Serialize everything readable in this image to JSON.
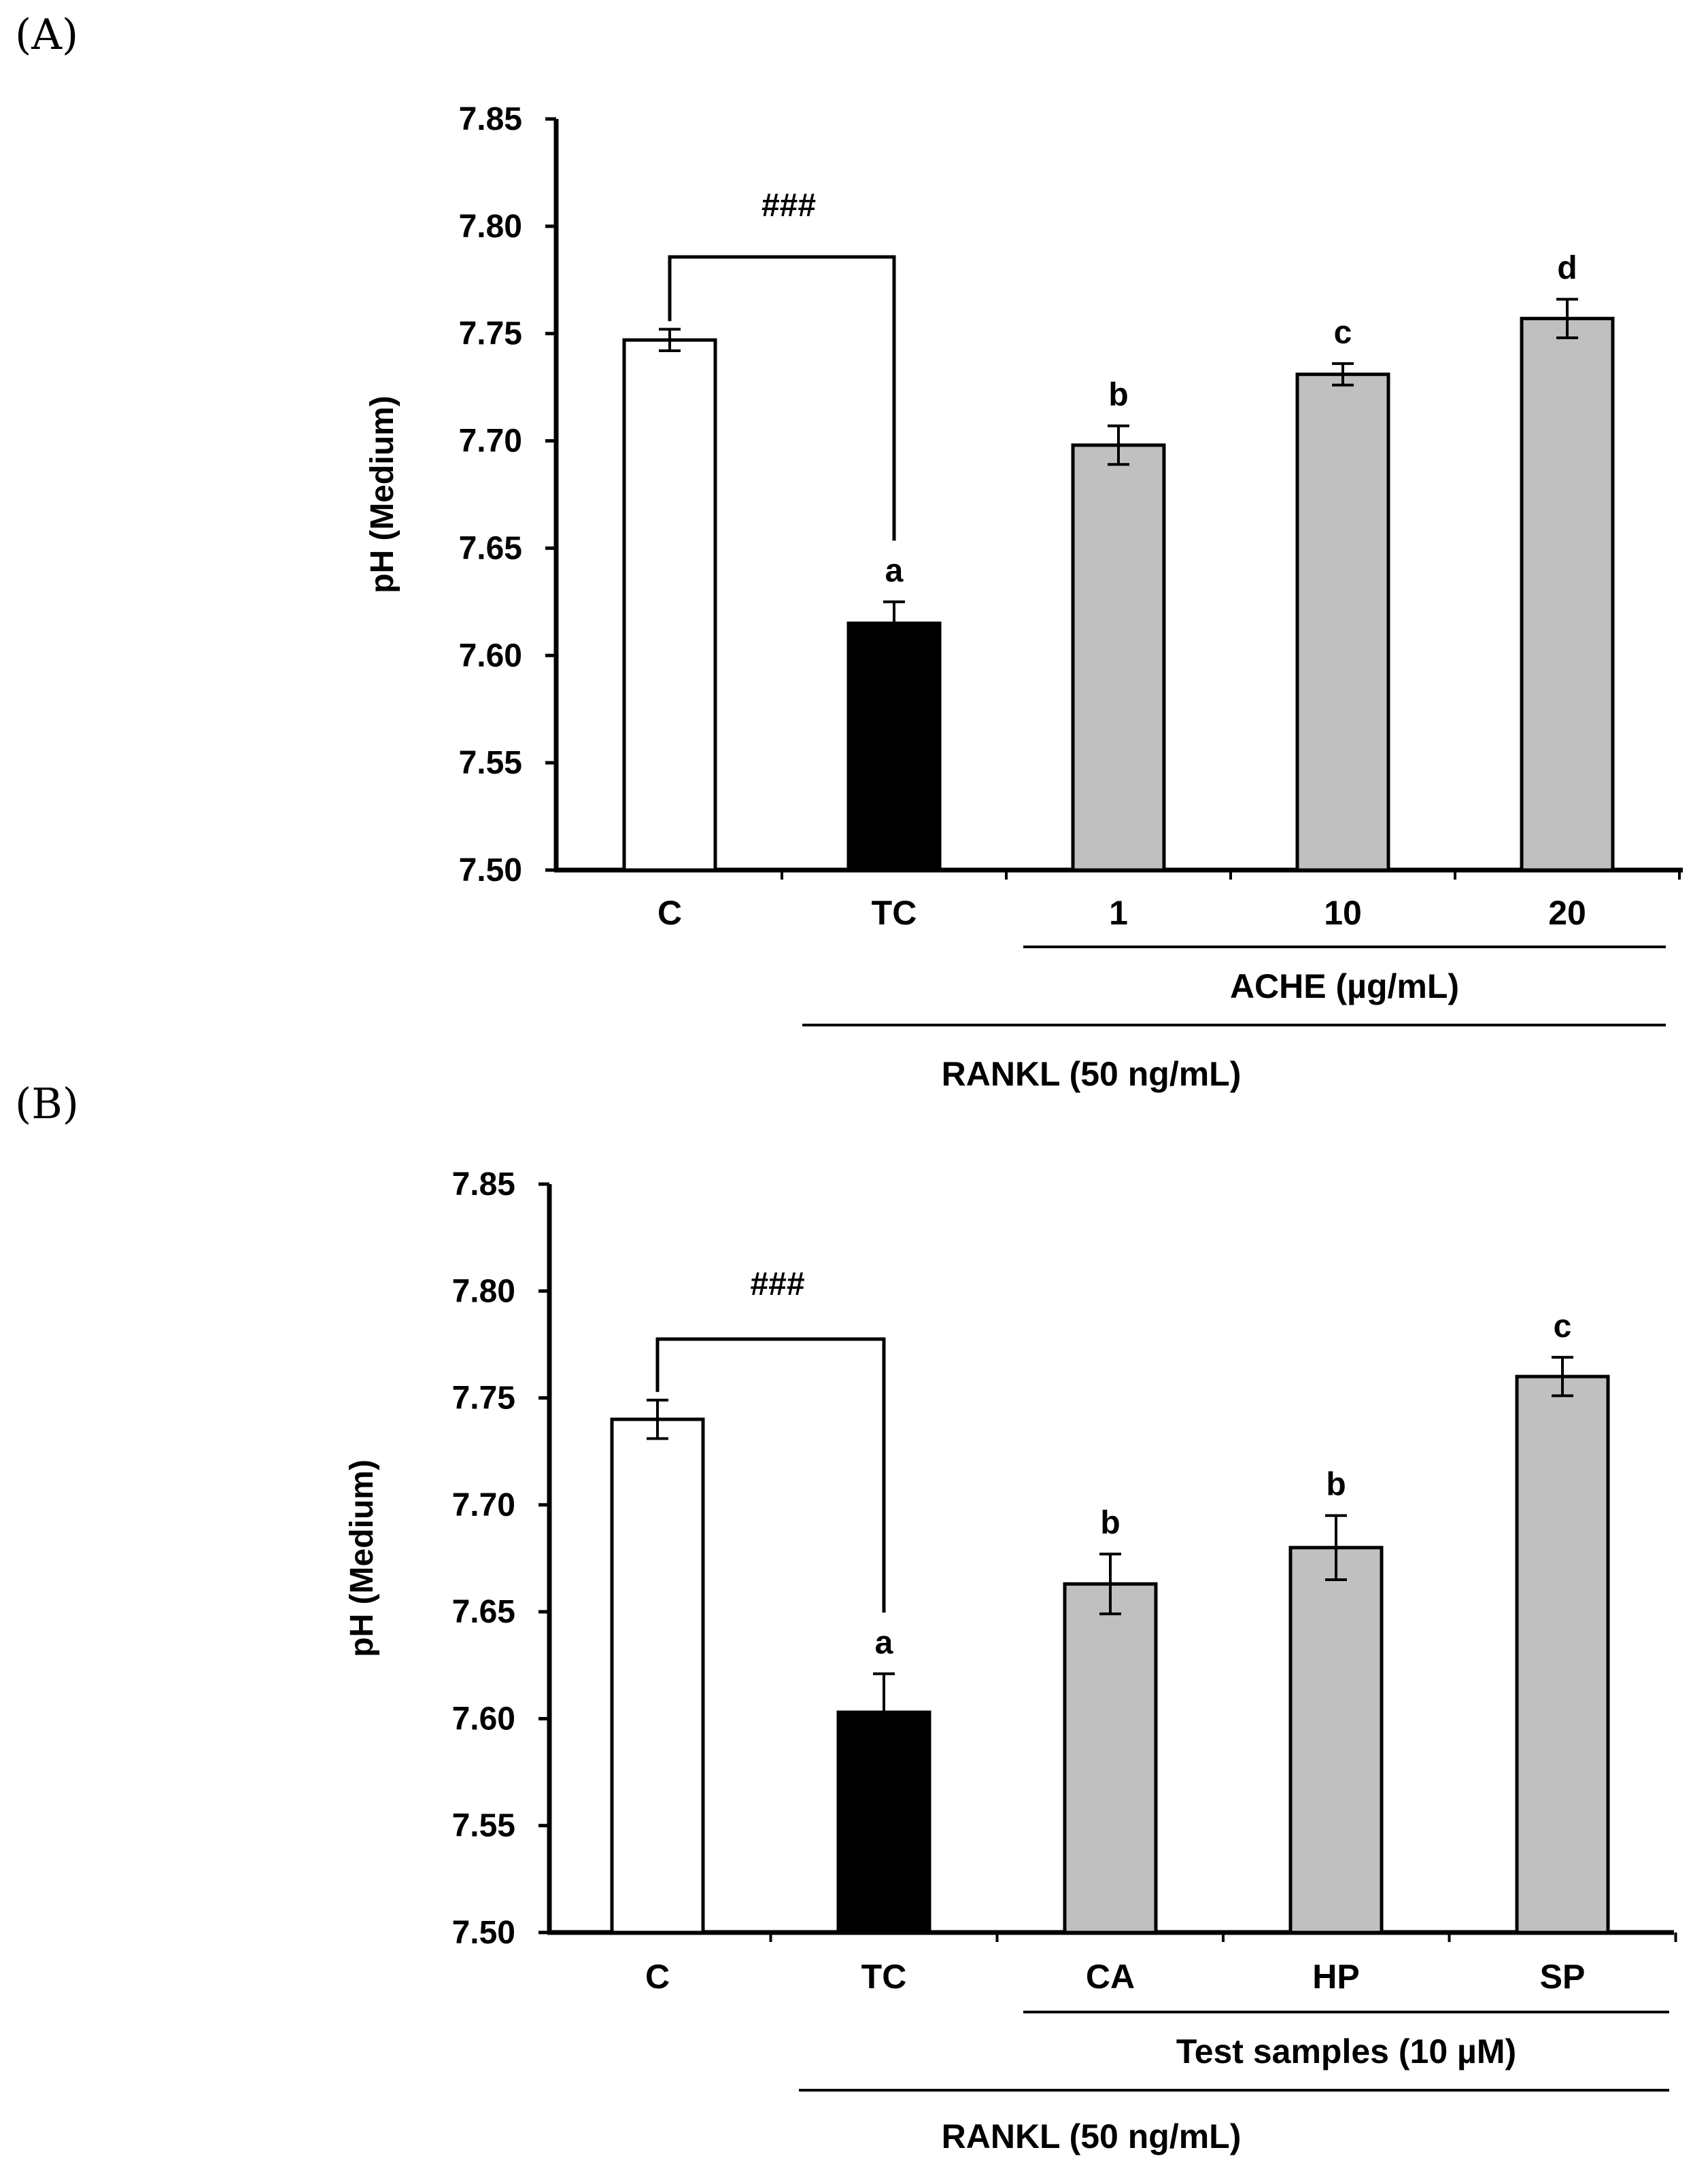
{
  "chart_data": [
    {
      "type": "bar",
      "panel_label": "(A)",
      "ylabel": "pH (Medium)",
      "ylim": [
        7.5,
        7.85
      ],
      "yticks": [
        "7.50",
        "7.55",
        "7.60",
        "7.65",
        "7.70",
        "7.75",
        "7.80",
        "7.85"
      ],
      "categories": [
        "C",
        "TC",
        "1",
        "10",
        "20"
      ],
      "values": [
        7.747,
        7.615,
        7.698,
        7.731,
        7.757
      ],
      "errors": [
        0.005,
        0.01,
        0.009,
        0.005,
        0.009
      ],
      "significance": [
        "",
        "a",
        "b",
        "c",
        "d"
      ],
      "bar_colors": [
        "#ffffff",
        "#000000",
        "#c0c0c0",
        "#c0c0c0",
        "#c0c0c0"
      ],
      "bracket_label": "###",
      "group_labels": {
        "inner": "ACHE (µg/mL)",
        "outer": "RANKL (50 ng/mL)"
      }
    },
    {
      "type": "bar",
      "panel_label": "(B)",
      "ylabel": "pH (Medium)",
      "ylim": [
        7.5,
        7.85
      ],
      "yticks": [
        "7.50",
        "7.55",
        "7.60",
        "7.65",
        "7.70",
        "7.75",
        "7.80",
        "7.85"
      ],
      "categories": [
        "C",
        "TC",
        "CA",
        "HP",
        "SP"
      ],
      "values": [
        7.74,
        7.603,
        7.663,
        7.68,
        7.76
      ],
      "errors": [
        0.009,
        0.018,
        0.014,
        0.015,
        0.009
      ],
      "significance": [
        "",
        "a",
        "b",
        "b",
        "c"
      ],
      "bar_colors": [
        "#ffffff",
        "#000000",
        "#c0c0c0",
        "#c0c0c0",
        "#c0c0c0"
      ],
      "bracket_label": "###",
      "group_labels": {
        "inner": "Test samples (10 µM)",
        "outer": "RANKL (50 ng/mL)"
      }
    }
  ]
}
